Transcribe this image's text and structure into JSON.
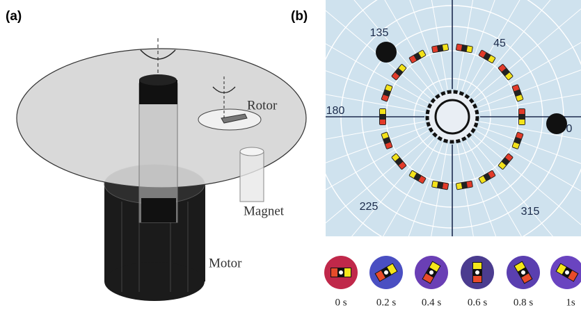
{
  "panels": {
    "a": "(a)",
    "b": "(b)"
  },
  "diagram": {
    "rotor": "Rotor",
    "magnet": "Magnet",
    "motor": "Motor"
  },
  "dial": {
    "angles": [
      "135",
      "45",
      "180",
      "0",
      "225",
      "315"
    ]
  },
  "frames": [
    "0 s",
    "0.2 s",
    "0.4 s",
    "0.6 s",
    "0.8 s",
    "1s"
  ]
}
